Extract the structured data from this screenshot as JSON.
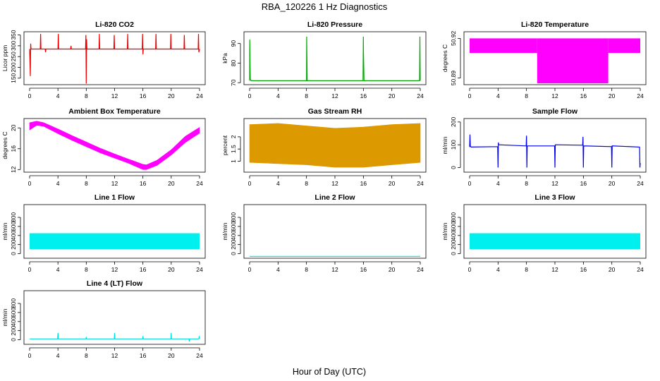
{
  "figure": {
    "title": "RBA_120226  1 Hz Diagnostics",
    "xlabel": "Hour of Day (UTC)"
  },
  "chart_data": [
    {
      "type": "line",
      "title": "Li-820 CO2",
      "xlabel": "",
      "ylabel": "Licor ppm",
      "color": "#ee0000",
      "xlim": [
        0,
        24
      ],
      "ylim": [
        120,
        365
      ],
      "x_ticks": [
        0,
        4,
        8,
        12,
        16,
        20,
        24
      ],
      "y_ticks": [
        150,
        200,
        250,
        300,
        350
      ],
      "series": [
        {
          "kind": "line",
          "x": [
            0,
            0.1,
            0.15,
            0.2,
            1.5,
            1.55,
            1.6,
            2.2,
            2.25,
            2.3,
            4,
            4.05,
            4.1,
            5.8,
            5.85,
            5.9,
            7.9,
            7.95,
            8.0,
            8.05,
            8.1,
            9.8,
            9.85,
            9.9,
            11.9,
            11.95,
            12,
            13.8,
            13.85,
            13.9,
            15.9,
            15.95,
            16,
            16.05,
            17.8,
            17.85,
            17.9,
            19.9,
            19.95,
            20,
            21.8,
            21.85,
            21.9,
            23.8,
            23.85,
            23.9,
            24
          ],
          "y": [
            285,
            160,
            310,
            285,
            285,
            355,
            285,
            285,
            270,
            285,
            285,
            355,
            285,
            285,
            300,
            285,
            285,
            350,
            125,
            330,
            285,
            285,
            355,
            285,
            285,
            350,
            285,
            285,
            355,
            285,
            285,
            355,
            260,
            285,
            285,
            355,
            285,
            285,
            355,
            285,
            285,
            350,
            285,
            285,
            355,
            270,
            285
          ]
        }
      ]
    },
    {
      "type": "line",
      "title": "Li-820 Pressure",
      "xlabel": "",
      "ylabel": "kPa",
      "color": "#00aa00",
      "xlim": [
        0,
        24
      ],
      "ylim": [
        69,
        96
      ],
      "x_ticks": [
        0,
        4,
        8,
        12,
        16,
        20,
        24
      ],
      "y_ticks": [
        70,
        80,
        90
      ],
      "series": [
        {
          "kind": "line",
          "x": [
            0,
            0.02,
            0.1,
            0.2,
            8.0,
            8.02,
            8.1,
            15.95,
            16,
            16.02,
            16.1,
            23.9,
            23.95,
            24
          ],
          "y": [
            71,
            92,
            72,
            71,
            71,
            93.5,
            71,
            71,
            93.5,
            85,
            71,
            71,
            93.5,
            71
          ]
        }
      ]
    },
    {
      "type": "area",
      "title": "Li-820 Temperature",
      "xlabel": "",
      "ylabel": "degrees C",
      "color": "#ff00ff",
      "xlim": [
        0,
        24
      ],
      "ylim": [
        50.885,
        50.925
      ],
      "x_ticks": [
        0,
        4,
        8,
        12,
        16,
        20,
        24
      ],
      "y_ticks": [
        50.89,
        50.92
      ],
      "series": [
        {
          "kind": "band",
          "x": [
            0,
            9.5
          ],
          "low": 50.909,
          "high": 50.92
        },
        {
          "kind": "band",
          "x": [
            9.5,
            19.5
          ],
          "low": 50.886,
          "high": 50.92
        },
        {
          "kind": "band",
          "x": [
            19.5,
            24
          ],
          "low": 50.909,
          "high": 50.92
        }
      ]
    },
    {
      "type": "line",
      "title": "Ambient Box Temperature",
      "xlabel": "",
      "ylabel": "degrees C",
      "color": "#ff00ff",
      "xlim": [
        0,
        24
      ],
      "ylim": [
        11.5,
        21.8
      ],
      "x_ticks": [
        0,
        4,
        8,
        12,
        16,
        20,
        24
      ],
      "y_ticks": [
        12,
        16,
        20
      ],
      "series": [
        {
          "kind": "band",
          "x": [
            0,
            1,
            2,
            4,
            6,
            8,
            10,
            12,
            14,
            16,
            16.5,
            18,
            20,
            22,
            24
          ],
          "low": [
            19.6,
            20.5,
            20.3,
            18.9,
            17.6,
            16.4,
            15.2,
            14.2,
            13.2,
            12.0,
            12.0,
            12.8,
            14.8,
            17.2,
            19.0
          ],
          "high": [
            21.0,
            21.3,
            21.0,
            19.8,
            18.5,
            17.3,
            16.1,
            15.0,
            14.0,
            13.0,
            12.9,
            13.8,
            15.8,
            18.4,
            20.1
          ]
        }
      ]
    },
    {
      "type": "area",
      "title": "Gas Stream RH",
      "xlabel": "",
      "ylabel": "percent",
      "color": "#dd9900",
      "xlim": [
        0,
        24
      ],
      "ylim": [
        0.55,
        2.75
      ],
      "x_ticks": [
        0,
        4,
        8,
        12,
        16,
        20,
        24
      ],
      "y_ticks": [
        1.0,
        1.5,
        2.0
      ],
      "series": [
        {
          "kind": "band",
          "x": [
            0,
            4,
            8,
            12,
            16,
            20,
            24
          ],
          "low": [
            0.95,
            0.9,
            0.85,
            0.75,
            0.75,
            0.85,
            0.95
          ],
          "high": [
            2.5,
            2.55,
            2.45,
            2.35,
            2.4,
            2.5,
            2.55
          ]
        }
      ]
    },
    {
      "type": "line",
      "title": "Sample Flow",
      "xlabel": "",
      "ylabel": "ml/min",
      "color": "#0000ee",
      "xlim": [
        0,
        24
      ],
      "ylim": [
        -20,
        215
      ],
      "x_ticks": [
        0,
        4,
        8,
        12,
        16,
        20,
        24
      ],
      "y_ticks": [
        0,
        100,
        200
      ],
      "series": [
        {
          "kind": "line",
          "x": [
            0,
            0.05,
            0.1,
            0.2,
            3.95,
            4,
            4.05,
            4.1,
            7.95,
            8,
            8.05,
            8.1,
            11.95,
            12,
            12.05,
            15.9,
            15.95,
            16,
            16.05,
            19.95,
            20,
            20.05,
            23.9,
            23.95,
            24
          ],
          "y": [
            90,
            145,
            95,
            90,
            92,
            0,
            110,
            100,
            95,
            140,
            0,
            95,
            95,
            0,
            100,
            98,
            135,
            0,
            95,
            92,
            0,
            95,
            90,
            0,
            20
          ]
        }
      ]
    },
    {
      "type": "area",
      "title": "Line 1 Flow",
      "xlabel": "",
      "ylabel": "ml/min",
      "color": "#00f0f0",
      "xlim": [
        0,
        24
      ],
      "ylim": [
        -100,
        1080
      ],
      "x_ticks": [
        0,
        4,
        8,
        12,
        16,
        20,
        24
      ],
      "y_ticks": [
        0,
        200,
        400,
        600,
        800
      ],
      "series": [
        {
          "kind": "band",
          "x": [
            0,
            24
          ],
          "low": 100,
          "high": 450
        }
      ]
    },
    {
      "type": "line",
      "title": "Line 2 Flow",
      "xlabel": "",
      "ylabel": "ml/min",
      "color": "#00f0f0",
      "xlim": [
        0,
        24
      ],
      "ylim": [
        -100,
        1080
      ],
      "x_ticks": [
        0,
        4,
        8,
        12,
        16,
        20,
        24
      ],
      "y_ticks": [
        0,
        200,
        400,
        600,
        800
      ],
      "series": [
        {
          "kind": "line",
          "x": [
            0,
            24
          ],
          "y": [
            -60,
            -60
          ]
        }
      ]
    },
    {
      "type": "area",
      "title": "Line 3 Flow",
      "xlabel": "",
      "ylabel": "ml/min",
      "color": "#00f0f0",
      "xlim": [
        0,
        24
      ],
      "ylim": [
        -100,
        1080
      ],
      "x_ticks": [
        0,
        4,
        8,
        12,
        16,
        20,
        24
      ],
      "y_ticks": [
        0,
        200,
        400,
        600,
        800
      ],
      "series": [
        {
          "kind": "band",
          "x": [
            0,
            24
          ],
          "low": 100,
          "high": 450
        }
      ]
    },
    {
      "type": "line",
      "title": "Line 4 (LT) Flow",
      "xlabel": "",
      "ylabel": "ml/min",
      "color": "#00e0e0",
      "xlim": [
        0,
        24
      ],
      "ylim": [
        -100,
        1080
      ],
      "x_ticks": [
        0,
        4,
        8,
        12,
        16,
        20,
        24
      ],
      "y_ticks": [
        0,
        200,
        400,
        600,
        800
      ],
      "series": [
        {
          "kind": "line",
          "x": [
            0,
            3.95,
            4,
            4.05,
            7.95,
            8,
            8.05,
            11.95,
            12,
            12.05,
            15.95,
            16,
            16.05,
            19.95,
            20,
            20.05,
            22.5,
            22.55,
            22.6,
            23.9,
            23.95,
            24
          ],
          "y": [
            20,
            20,
            150,
            20,
            20,
            60,
            20,
            20,
            150,
            20,
            20,
            80,
            20,
            20,
            150,
            20,
            20,
            -40,
            20,
            20,
            80,
            20
          ]
        }
      ]
    }
  ]
}
